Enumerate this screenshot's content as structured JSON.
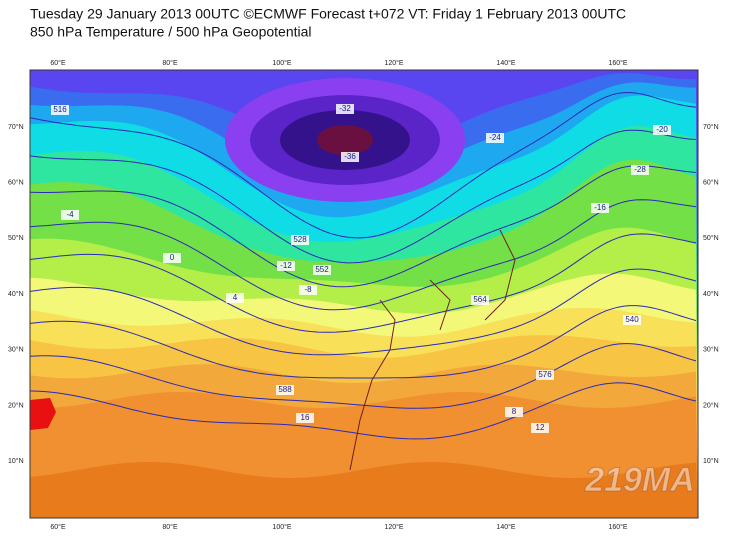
{
  "header": {
    "title": "Tuesday 29 January 2013 00UTC ©ECMWF Forecast t+072 VT: Friday 1 February 2013 00UTC",
    "subtitle": "850 hPa Temperature / 500 hPa Geopotential"
  },
  "map": {
    "lon_labels": [
      "60°E",
      "80°E",
      "100°E",
      "120°E",
      "140°E",
      "160°E"
    ],
    "lat_labels": [
      "70°N",
      "60°N",
      "50°N",
      "40°N",
      "30°N",
      "20°N",
      "10°N"
    ],
    "contour_labels": [
      "516",
      "528",
      "540",
      "552",
      "564",
      "576",
      "588",
      "-36",
      "-32",
      "-28",
      "-24",
      "-20",
      "-16",
      "-12",
      "-8",
      "-4",
      "0",
      "4",
      "8",
      "12",
      "16"
    ],
    "watermark": "219MA"
  }
}
